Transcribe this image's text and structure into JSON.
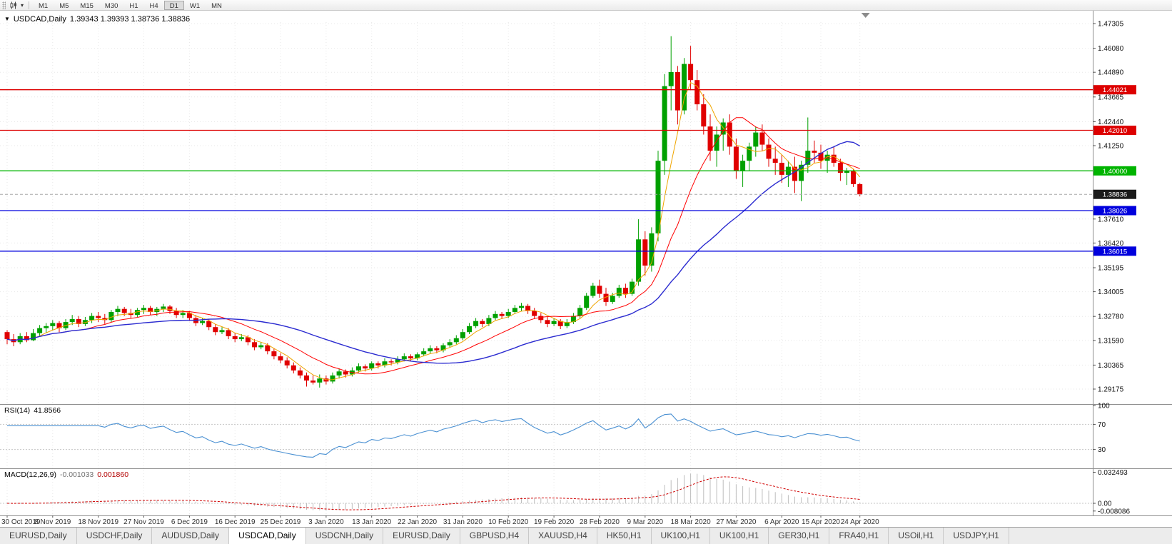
{
  "toolbar": {
    "timeframes": [
      "M1",
      "M5",
      "M15",
      "M30",
      "H1",
      "H4",
      "D1",
      "W1",
      "MN"
    ],
    "active_timeframe": "D1"
  },
  "chart": {
    "title": "USDCAD,Daily",
    "ohlc_text": "1.39343 1.39393 1.38736 1.38836",
    "collapse_icon": "▼"
  },
  "price_axis": {
    "ticks": [
      "1.47305",
      "1.46080",
      "1.44890",
      "1.43665",
      "1.42440",
      "1.41250",
      "1.37610",
      "1.36420",
      "1.35195",
      "1.34005",
      "1.32780",
      "1.31590",
      "1.30365",
      "1.29175"
    ],
    "badges": [
      {
        "label": "1.44021",
        "price": 1.44021,
        "color": "#dd0000"
      },
      {
        "label": "1.42010",
        "price": 1.4201,
        "color": "#dd0000"
      },
      {
        "label": "1.40000",
        "price": 1.4,
        "color": "#00b400"
      },
      {
        "label": "1.38836",
        "price": 1.38836,
        "color": "#1a1a1a"
      },
      {
        "label": "1.38026",
        "price": 1.38026,
        "color": "#0000dd"
      },
      {
        "label": "1.36015",
        "price": 1.36015,
        "color": "#0000dd"
      }
    ]
  },
  "rsi": {
    "label": "RSI(14)",
    "value": "41.8566",
    "levels": [
      "100",
      "70",
      "30"
    ]
  },
  "macd": {
    "label": "MACD(12,26,9)",
    "value_main": "-0.001033",
    "value_signal": "0.001860",
    "axis_max": "0.032493",
    "axis_zero": "0.00",
    "axis_min": "-0.008086"
  },
  "tabs": {
    "active_index": 3,
    "items": [
      "EURUSD,Daily",
      "USDCHF,Daily",
      "AUDUSD,Daily",
      "USDCAD,Daily",
      "USDCNH,Daily",
      "EURUSD,Daily",
      "GBPUSD,H4",
      "XAUUSD,H4",
      "HK50,H1",
      "UK100,H1",
      "UK100,H1",
      "GER30,H1",
      "FRA40,H1",
      "USOil,H1",
      "USDJPY,H1"
    ],
    "active": "USDCAD,Daily"
  },
  "chart_data": {
    "type": "candlestick",
    "symbol": "USDCAD",
    "timeframe": "Daily",
    "bull_color": "#00a000",
    "bear_color": "#e00000",
    "bid_price": 1.38836,
    "visible_price_range": [
      1.2877,
      1.4764
    ],
    "moving_averages": [
      {
        "period": 5,
        "color": "#efa500",
        "width": 1
      },
      {
        "period": 13,
        "color": "#ff0000",
        "width": 1
      },
      {
        "period": 30,
        "color": "#2b2bd0",
        "width": 1.4
      }
    ],
    "horizontal_lines": [
      {
        "name": "resistance-line-upper",
        "price": 1.44021,
        "color": "#dd0000"
      },
      {
        "name": "resistance-line-lower",
        "price": 1.4201,
        "color": "#dd0000"
      },
      {
        "name": "psychological-level-line",
        "price": 1.4,
        "color": "#00b400"
      },
      {
        "name": "support-line-upper",
        "price": 1.38026,
        "color": "#0000dd"
      },
      {
        "name": "support-line-lower",
        "price": 1.36015,
        "color": "#0000dd"
      }
    ],
    "rsi": {
      "period": 14,
      "current": 41.8566,
      "color": "#4a90d2",
      "levels": [
        70,
        30
      ]
    },
    "macd": {
      "fast": 12,
      "slow": 26,
      "signal": 9,
      "current_main": -0.001033,
      "current_signal": 0.00186,
      "signal_color": "#d00000",
      "histogram_color": "#bdbdbd",
      "axis_max_label": "0.032493",
      "axis_min_label": "-0.008086"
    },
    "date_labels": [
      {
        "text": "30 Oct 2019",
        "index": 0
      },
      {
        "text": "8 Nov 2019",
        "index": 7
      },
      {
        "text": "18 Nov 2019",
        "index": 14
      },
      {
        "text": "27 Nov 2019",
        "index": 21
      },
      {
        "text": "6 Dec 2019",
        "index": 28
      },
      {
        "text": "16 Dec 2019",
        "index": 35
      },
      {
        "text": "25 Dec 2019",
        "index": 42
      },
      {
        "text": "3 Jan 2020",
        "index": 49
      },
      {
        "text": "13 Jan 2020",
        "index": 56
      },
      {
        "text": "22 Jan 2020",
        "index": 63
      },
      {
        "text": "31 Jan 2020",
        "index": 70
      },
      {
        "text": "10 Feb 2020",
        "index": 77
      },
      {
        "text": "19 Feb 2020",
        "index": 84
      },
      {
        "text": "28 Feb 2020",
        "index": 91
      },
      {
        "text": "9 Mar 2020",
        "index": 98
      },
      {
        "text": "18 Mar 2020",
        "index": 105
      },
      {
        "text": "27 Mar 2020",
        "index": 112
      },
      {
        "text": "6 Apr 2020",
        "index": 119
      },
      {
        "text": "15 Apr 2020",
        "index": 125
      },
      {
        "text": "24 Apr 2020",
        "index": 131
      }
    ],
    "ohlc": [
      [
        1.32,
        1.321,
        1.314,
        1.3165
      ],
      [
        1.3165,
        1.319,
        1.313,
        1.315
      ],
      [
        1.315,
        1.3195,
        1.314,
        1.318
      ],
      [
        1.318,
        1.32,
        1.315,
        1.316
      ],
      [
        1.316,
        1.3215,
        1.3155,
        1.3195
      ],
      [
        1.3195,
        1.3235,
        1.318,
        1.322
      ],
      [
        1.322,
        1.3245,
        1.3195,
        1.323
      ],
      [
        1.323,
        1.326,
        1.321,
        1.3245
      ],
      [
        1.3245,
        1.3255,
        1.32,
        1.322
      ],
      [
        1.322,
        1.3265,
        1.321,
        1.325
      ],
      [
        1.325,
        1.3285,
        1.3235,
        1.3265
      ],
      [
        1.3265,
        1.328,
        1.3225,
        1.324
      ],
      [
        1.324,
        1.3275,
        1.323,
        1.326
      ],
      [
        1.326,
        1.3295,
        1.3245,
        1.328
      ],
      [
        1.328,
        1.33,
        1.325,
        1.327
      ],
      [
        1.327,
        1.329,
        1.324,
        1.326
      ],
      [
        1.326,
        1.331,
        1.325,
        1.33
      ],
      [
        1.33,
        1.333,
        1.328,
        1.3315
      ],
      [
        1.3315,
        1.3325,
        1.328,
        1.3295
      ],
      [
        1.3295,
        1.3315,
        1.327,
        1.3285
      ],
      [
        1.3285,
        1.332,
        1.3275,
        1.331
      ],
      [
        1.331,
        1.3335,
        1.329,
        1.332
      ],
      [
        1.332,
        1.333,
        1.3285,
        1.33
      ],
      [
        1.33,
        1.3325,
        1.328,
        1.3315
      ],
      [
        1.3315,
        1.334,
        1.33,
        1.3327
      ],
      [
        1.3327,
        1.3335,
        1.329,
        1.3305
      ],
      [
        1.3305,
        1.332,
        1.327,
        1.3285
      ],
      [
        1.3285,
        1.331,
        1.327,
        1.3295
      ],
      [
        1.3295,
        1.3305,
        1.3255,
        1.327
      ],
      [
        1.327,
        1.3285,
        1.323,
        1.3245
      ],
      [
        1.3245,
        1.327,
        1.3235,
        1.3255
      ],
      [
        1.3255,
        1.3265,
        1.321,
        1.3225
      ],
      [
        1.3225,
        1.324,
        1.3185,
        1.32
      ],
      [
        1.32,
        1.3225,
        1.319,
        1.321
      ],
      [
        1.321,
        1.322,
        1.3165,
        1.318
      ],
      [
        1.318,
        1.3195,
        1.315,
        1.3165
      ],
      [
        1.3165,
        1.319,
        1.3155,
        1.3175
      ],
      [
        1.3175,
        1.3185,
        1.3135,
        1.315
      ],
      [
        1.315,
        1.3165,
        1.311,
        1.3125
      ],
      [
        1.3125,
        1.315,
        1.3115,
        1.3135
      ],
      [
        1.3135,
        1.3145,
        1.309,
        1.3105
      ],
      [
        1.3105,
        1.312,
        1.3065,
        1.308
      ],
      [
        1.308,
        1.3095,
        1.3045,
        1.306
      ],
      [
        1.306,
        1.3075,
        1.302,
        1.3035
      ],
      [
        1.3035,
        1.305,
        1.2995,
        1.301
      ],
      [
        1.301,
        1.3025,
        1.297,
        1.2985
      ],
      [
        1.2985,
        1.3,
        1.293,
        1.296
      ],
      [
        1.296,
        1.2985,
        1.294,
        1.295
      ],
      [
        1.295,
        1.299,
        1.2925,
        1.297
      ],
      [
        1.297,
        1.2985,
        1.294,
        1.2955
      ],
      [
        1.2955,
        1.3,
        1.2945,
        1.2985
      ],
      [
        1.2985,
        1.302,
        1.297,
        1.3005
      ],
      [
        1.3005,
        1.3015,
        1.2975,
        1.299
      ],
      [
        1.299,
        1.3025,
        1.298,
        1.301
      ],
      [
        1.301,
        1.3045,
        1.3,
        1.303
      ],
      [
        1.303,
        1.304,
        1.3005,
        1.302
      ],
      [
        1.302,
        1.3055,
        1.301,
        1.3045
      ],
      [
        1.3045,
        1.3055,
        1.302,
        1.3035
      ],
      [
        1.3035,
        1.307,
        1.3025,
        1.3055
      ],
      [
        1.3055,
        1.3065,
        1.3035,
        1.305
      ],
      [
        1.305,
        1.308,
        1.304,
        1.3065
      ],
      [
        1.3065,
        1.3095,
        1.3055,
        1.308
      ],
      [
        1.308,
        1.309,
        1.3055,
        1.307
      ],
      [
        1.307,
        1.31,
        1.306,
        1.309
      ],
      [
        1.309,
        1.312,
        1.308,
        1.3105
      ],
      [
        1.3105,
        1.3135,
        1.3095,
        1.312
      ],
      [
        1.312,
        1.313,
        1.3095,
        1.311
      ],
      [
        1.311,
        1.3145,
        1.31,
        1.3135
      ],
      [
        1.3135,
        1.3165,
        1.3125,
        1.315
      ],
      [
        1.315,
        1.3185,
        1.314,
        1.317
      ],
      [
        1.317,
        1.3215,
        1.316,
        1.32
      ],
      [
        1.32,
        1.3245,
        1.319,
        1.323
      ],
      [
        1.323,
        1.327,
        1.322,
        1.3255
      ],
      [
        1.3255,
        1.3265,
        1.3225,
        1.324
      ],
      [
        1.324,
        1.3285,
        1.323,
        1.327
      ],
      [
        1.327,
        1.3305,
        1.326,
        1.329
      ],
      [
        1.329,
        1.33,
        1.3265,
        1.328
      ],
      [
        1.328,
        1.3315,
        1.327,
        1.33
      ],
      [
        1.33,
        1.3335,
        1.329,
        1.332
      ],
      [
        1.332,
        1.3345,
        1.3305,
        1.333
      ],
      [
        1.333,
        1.334,
        1.329,
        1.3305
      ],
      [
        1.3305,
        1.332,
        1.3265,
        1.328
      ],
      [
        1.328,
        1.3295,
        1.3245,
        1.326
      ],
      [
        1.326,
        1.3275,
        1.3225,
        1.324
      ],
      [
        1.324,
        1.327,
        1.323,
        1.3255
      ],
      [
        1.3255,
        1.3265,
        1.3215,
        1.323
      ],
      [
        1.323,
        1.3265,
        1.322,
        1.325
      ],
      [
        1.325,
        1.3295,
        1.324,
        1.328
      ],
      [
        1.328,
        1.3335,
        1.327,
        1.332
      ],
      [
        1.332,
        1.3395,
        1.331,
        1.338
      ],
      [
        1.338,
        1.3445,
        1.337,
        1.343
      ],
      [
        1.343,
        1.346,
        1.337,
        1.339
      ],
      [
        1.339,
        1.342,
        1.333,
        1.335
      ],
      [
        1.335,
        1.3395,
        1.334,
        1.338
      ],
      [
        1.338,
        1.3435,
        1.337,
        1.342
      ],
      [
        1.342,
        1.344,
        1.337,
        1.339
      ],
      [
        1.339,
        1.3465,
        1.338,
        1.345
      ],
      [
        1.345,
        1.376,
        1.343,
        1.366
      ],
      [
        1.366,
        1.37,
        1.348,
        1.353
      ],
      [
        1.353,
        1.372,
        1.35,
        1.369
      ],
      [
        1.369,
        1.41,
        1.365,
        1.405
      ],
      [
        1.405,
        1.448,
        1.398,
        1.442
      ],
      [
        1.442,
        1.4668,
        1.43,
        1.449
      ],
      [
        1.449,
        1.452,
        1.423,
        1.43
      ],
      [
        1.43,
        1.456,
        1.428,
        1.453
      ],
      [
        1.453,
        1.462,
        1.44,
        1.445
      ],
      [
        1.445,
        1.45,
        1.43,
        1.433
      ],
      [
        1.433,
        1.438,
        1.418,
        1.422
      ],
      [
        1.422,
        1.428,
        1.405,
        1.41
      ],
      [
        1.41,
        1.422,
        1.402,
        1.418
      ],
      [
        1.418,
        1.426,
        1.41,
        1.424
      ],
      [
        1.424,
        1.428,
        1.408,
        1.412
      ],
      [
        1.412,
        1.416,
        1.396,
        1.4
      ],
      [
        1.4,
        1.408,
        1.392,
        1.405
      ],
      [
        1.405,
        1.414,
        1.4,
        1.412
      ],
      [
        1.412,
        1.422,
        1.407,
        1.419
      ],
      [
        1.419,
        1.423,
        1.41,
        1.413
      ],
      [
        1.413,
        1.416,
        1.402,
        1.406
      ],
      [
        1.406,
        1.412,
        1.398,
        1.404
      ],
      [
        1.404,
        1.408,
        1.394,
        1.398
      ],
      [
        1.398,
        1.405,
        1.392,
        1.402
      ],
      [
        1.402,
        1.407,
        1.389,
        1.395
      ],
      [
        1.395,
        1.405,
        1.385,
        1.403
      ],
      [
        1.403,
        1.4265,
        1.399,
        1.41
      ],
      [
        1.41,
        1.415,
        1.404,
        1.409
      ],
      [
        1.409,
        1.413,
        1.401,
        1.405
      ],
      [
        1.405,
        1.41,
        1.399,
        1.408
      ],
      [
        1.408,
        1.412,
        1.402,
        1.404
      ],
      [
        1.404,
        1.406,
        1.395,
        1.399
      ],
      [
        1.399,
        1.4015,
        1.393,
        1.4
      ],
      [
        1.4,
        1.401,
        1.392,
        1.39343
      ],
      [
        1.39343,
        1.39393,
        1.38736,
        1.38836
      ]
    ]
  }
}
